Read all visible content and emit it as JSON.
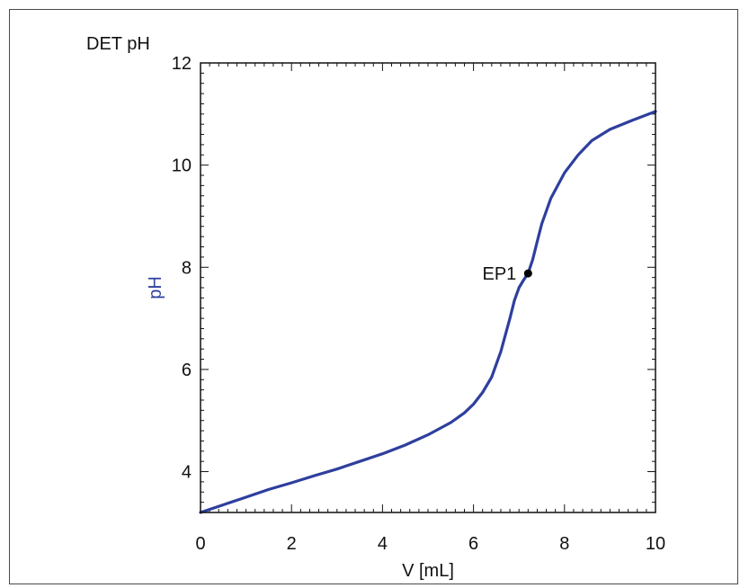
{
  "chart_data": {
    "type": "line",
    "title": "DET pH",
    "xlabel": "V [mL]",
    "ylabel": "pH",
    "xlim": [
      0,
      10
    ],
    "ylim": [
      3.2,
      12
    ],
    "x_ticks": [
      0,
      2,
      4,
      6,
      8,
      10
    ],
    "y_ticks": [
      4,
      6,
      8,
      10,
      12
    ],
    "grid": false,
    "colors": {
      "series": "#2e3f9e",
      "ylabel": "#2e3f9e",
      "marker": "#000000"
    },
    "series": [
      {
        "x": [
          0,
          0.5,
          1,
          1.5,
          2,
          2.5,
          3,
          3.5,
          4,
          4.5,
          5,
          5.5,
          5.8,
          6.0,
          6.2,
          6.4,
          6.6,
          6.8,
          6.9,
          7.0,
          7.1,
          7.2,
          7.3,
          7.4,
          7.5,
          7.7,
          8.0,
          8.3,
          8.6,
          9.0,
          9.5,
          10
        ],
        "y": [
          3.2,
          3.35,
          3.5,
          3.65,
          3.78,
          3.92,
          4.05,
          4.2,
          4.35,
          4.52,
          4.72,
          4.96,
          5.15,
          5.32,
          5.55,
          5.85,
          6.35,
          7.0,
          7.35,
          7.6,
          7.75,
          7.88,
          8.15,
          8.5,
          8.85,
          9.35,
          9.85,
          10.2,
          10.48,
          10.7,
          10.88,
          11.05
        ]
      }
    ],
    "annotations": [
      {
        "label": "EP1",
        "x": 7.2,
        "y": 7.88
      }
    ]
  }
}
